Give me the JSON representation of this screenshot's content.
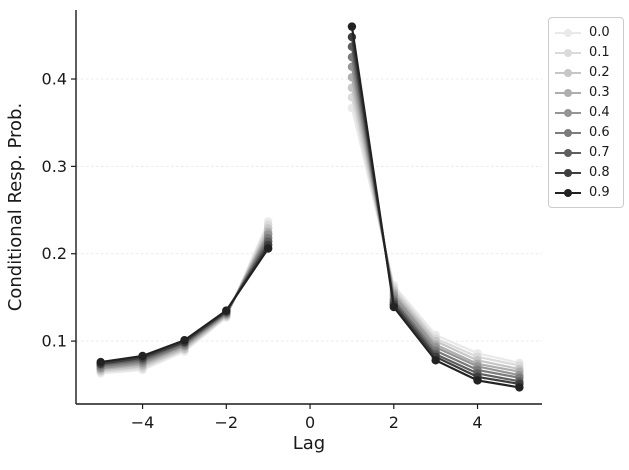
{
  "figure": {
    "background": "#ffffff",
    "text_color": "#1a1a1a",
    "axis_color": "#1a1a1a",
    "grid_color": "#e9e9e9",
    "legend_border_color": "#cccccc"
  },
  "chart_data": {
    "type": "line",
    "title": "",
    "xlabel": "Lag",
    "ylabel": "Conditional Resp. Prob.",
    "xlim": [
      -5.59,
      5.54
    ],
    "ylim": [
      0.028,
      0.479
    ],
    "x_ticks": [
      -4,
      -2,
      0,
      2,
      4
    ],
    "x_tick_labels": [
      "−4",
      "−2",
      "0",
      "2",
      "4"
    ],
    "y_ticks": [
      0.1,
      0.2,
      0.3,
      0.4
    ],
    "y_tick_labels": [
      "0.1",
      "0.2",
      "0.3",
      "0.4"
    ],
    "grid": "horizontal-dashed",
    "legend_position": "outside-upper-right",
    "marker": "circle",
    "x_negative": [
      -5,
      -4,
      -3,
      -2,
      -1
    ],
    "x_positive": [
      1,
      2,
      3,
      4,
      5
    ],
    "series": [
      {
        "name": "0.0",
        "color": "#e9e9e9",
        "neg": [
          0.063,
          0.067,
          0.088,
          0.127,
          0.237
        ],
        "pos": [
          0.367,
          0.164,
          0.107,
          0.086,
          0.075
        ]
      },
      {
        "name": "0.1",
        "color": "#dadada",
        "neg": [
          0.065,
          0.069,
          0.09,
          0.128,
          0.233
        ],
        "pos": [
          0.379,
          0.161,
          0.103,
          0.082,
          0.072
        ]
      },
      {
        "name": "0.2",
        "color": "#c6c6c6",
        "neg": [
          0.066,
          0.071,
          0.091,
          0.129,
          0.229
        ],
        "pos": [
          0.39,
          0.158,
          0.1,
          0.078,
          0.068
        ]
      },
      {
        "name": "0.3",
        "color": "#aeaeae",
        "neg": [
          0.068,
          0.073,
          0.093,
          0.13,
          0.225
        ],
        "pos": [
          0.402,
          0.155,
          0.096,
          0.074,
          0.065
        ]
      },
      {
        "name": "0.4",
        "color": "#959595",
        "neg": [
          0.069,
          0.075,
          0.095,
          0.131,
          0.222
        ],
        "pos": [
          0.414,
          0.152,
          0.093,
          0.071,
          0.061
        ]
      },
      {
        "name": "0.6",
        "color": "#7b7b7b",
        "neg": [
          0.071,
          0.077,
          0.096,
          0.132,
          0.218
        ],
        "pos": [
          0.425,
          0.148,
          0.089,
          0.067,
          0.058
        ]
      },
      {
        "name": "0.7",
        "color": "#5e5e5e",
        "neg": [
          0.073,
          0.079,
          0.098,
          0.133,
          0.214
        ],
        "pos": [
          0.437,
          0.145,
          0.085,
          0.063,
          0.054
        ]
      },
      {
        "name": "0.8",
        "color": "#3e3e3e",
        "neg": [
          0.074,
          0.081,
          0.099,
          0.134,
          0.21
        ],
        "pos": [
          0.448,
          0.142,
          0.082,
          0.059,
          0.051
        ]
      },
      {
        "name": "0.9",
        "color": "#222222",
        "neg": [
          0.076,
          0.083,
          0.101,
          0.135,
          0.206
        ],
        "pos": [
          0.46,
          0.139,
          0.078,
          0.055,
          0.047
        ]
      }
    ]
  }
}
